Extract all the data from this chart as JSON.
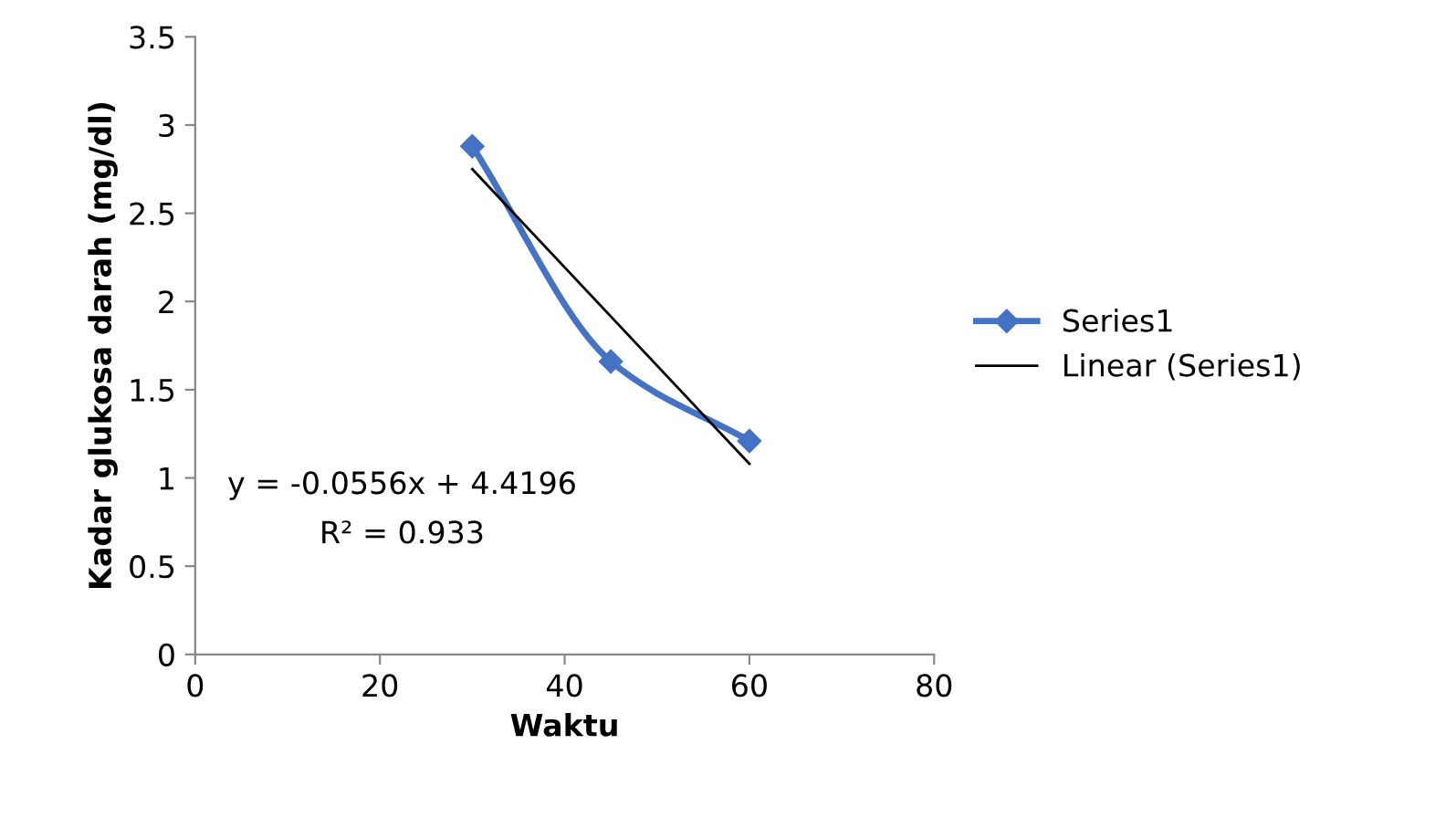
{
  "chart_data": {
    "type": "line",
    "xlabel": "Waktu",
    "ylabel": "Kadar glukosa darah (mg/dl)",
    "xlim": [
      0,
      80
    ],
    "xticks": [
      0,
      20,
      40,
      60,
      80
    ],
    "ylim": [
      0,
      3.5
    ],
    "yticks": [
      0,
      0.5,
      1,
      1.5,
      2,
      2.5,
      3,
      3.5
    ],
    "grid": false,
    "legend": "right",
    "series": [
      {
        "name": "Series1",
        "color": "#4472c4",
        "x": [
          30,
          45,
          60
        ],
        "values": [
          2.88,
          1.66,
          1.21
        ],
        "marker": "diamond",
        "line_style": "solid"
      },
      {
        "name": "Linear (Series1)",
        "color": "#000000",
        "x": [
          30,
          60
        ],
        "values": [
          2.75,
          1.08
        ],
        "marker": "none",
        "line_style": "solid"
      }
    ],
    "annotations": [
      "y = -0.0556x + 4.4196",
      "R² = 0.933"
    ]
  }
}
